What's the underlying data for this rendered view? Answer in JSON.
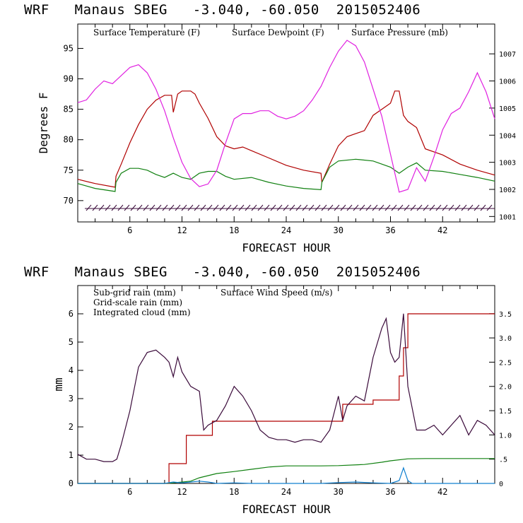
{
  "headers": {
    "top": "WRF   Manaus SBEG   -3.040, -60.050  2015052406",
    "bottom": "WRF   Manaus SBEG   -3.040, -60.050  2015052406"
  },
  "colors": {
    "temperature": "#b00000",
    "dewpoint": "#108010",
    "pressure": "#e020e0",
    "subgrid_rain": "#b00000",
    "gridscale_rain": "#108010",
    "cloud": "#1080d0",
    "wind": "#3a0a3a"
  },
  "chart_data": [
    {
      "type": "line",
      "title": "WRF Manaus SBEG -3.040, -60.050 2015052406",
      "xlabel": "FORECAST HOUR",
      "ylabel": "Degrees F",
      "x_ticks": [
        6,
        12,
        18,
        24,
        30,
        36,
        42
      ],
      "xlim": [
        0,
        48
      ],
      "y_ticks": [
        70,
        75,
        80,
        85,
        90,
        95
      ],
      "ylim": [
        66.5,
        99
      ],
      "y2_ticks": [
        1001,
        1002,
        1003,
        1004,
        1005,
        1006,
        1007
      ],
      "y2lim": [
        1000.8,
        1008.1
      ],
      "legend": [
        "Surface Temperature (F)",
        "Surface Dewpoint (F)",
        "Surface Pressure (mb)"
      ],
      "series": [
        {
          "name": "Surface Temperature (F)",
          "axis": "left",
          "x": [
            0,
            2,
            4.3,
            4.4,
            5,
            6,
            7,
            8,
            9,
            10,
            10.8,
            11,
            11.5,
            12,
            13,
            13.5,
            14,
            15,
            16,
            17,
            18,
            19,
            20,
            22,
            24,
            26,
            28,
            28.1,
            29,
            30,
            31,
            32,
            33,
            34,
            35,
            36,
            36.5,
            37,
            37.5,
            38,
            39,
            40,
            42,
            44,
            46,
            48
          ],
          "y": [
            73.5,
            72.8,
            72.2,
            74,
            76,
            79.5,
            82.5,
            85,
            86.5,
            87.3,
            87.3,
            84.5,
            87.5,
            88,
            88,
            87.5,
            86,
            83.5,
            80.5,
            79,
            78.5,
            78.8,
            78.2,
            77,
            75.8,
            75,
            74.5,
            73,
            76,
            79,
            80.5,
            81,
            81.5,
            84,
            85,
            86,
            88,
            88,
            84,
            83,
            82,
            78.5,
            77.5,
            76,
            75,
            74.2
          ]
        },
        {
          "name": "Surface Dewpoint (F)",
          "axis": "left",
          "x": [
            0,
            2,
            4.3,
            4.4,
            5,
            6,
            7,
            8,
            9,
            10,
            11,
            12,
            13,
            14,
            15,
            16,
            17,
            18,
            20,
            22,
            24,
            26,
            28,
            28.1,
            29,
            30,
            32,
            34,
            36,
            37,
            38,
            39,
            40,
            42,
            44,
            46,
            48
          ],
          "y": [
            72.8,
            72,
            71.5,
            73,
            74.5,
            75.3,
            75.3,
            75,
            74.3,
            73.8,
            74.5,
            73.8,
            73.5,
            74.5,
            74.8,
            74.8,
            74,
            73.5,
            73.8,
            73,
            72.4,
            72,
            71.8,
            73,
            75.5,
            76.5,
            76.8,
            76.5,
            75.5,
            74.5,
            75.5,
            76.2,
            75,
            74.8,
            74.3,
            73.8,
            73.2
          ]
        },
        {
          "name": "Surface Pressure (mb)",
          "axis": "right",
          "x": [
            0,
            1,
            2,
            3,
            4,
            5,
            6,
            7,
            8,
            9,
            10,
            11,
            12,
            13,
            14,
            15,
            16,
            17,
            18,
            19,
            20,
            21,
            22,
            23,
            24,
            25,
            26,
            27,
            28,
            29,
            30,
            31,
            32,
            33,
            34,
            35,
            36,
            37,
            38,
            39,
            40,
            41,
            42,
            43,
            44,
            45,
            46,
            47,
            48
          ],
          "y": [
            1005.2,
            1005.3,
            1005.7,
            1006,
            1005.9,
            1006.2,
            1006.5,
            1006.6,
            1006.3,
            1005.7,
            1004.9,
            1003.9,
            1003,
            1002.4,
            1002.1,
            1002.2,
            1002.7,
            1003.7,
            1004.6,
            1004.8,
            1004.8,
            1004.9,
            1004.9,
            1004.7,
            1004.6,
            1004.7,
            1004.9,
            1005.3,
            1005.8,
            1006.5,
            1007.1,
            1007.5,
            1007.3,
            1006.7,
            1005.7,
            1004.7,
            1003.3,
            1001.9,
            1002,
            1002.8,
            1002.3,
            1003.2,
            1004.2,
            1004.8,
            1005,
            1005.6,
            1006.3,
            1005.6,
            1004.6
          ]
        }
      ]
    },
    {
      "type": "line",
      "title": "WRF Manaus SBEG -3.040, -60.050 2015052406",
      "xlabel": "FORECAST HOUR",
      "ylabel": "mm",
      "x_ticks": [
        6,
        12,
        18,
        24,
        30,
        36,
        42
      ],
      "xlim": [
        0,
        48
      ],
      "y_ticks": [
        0,
        1,
        2,
        3,
        4,
        5,
        6
      ],
      "ylim": [
        0,
        7
      ],
      "y2_ticks": [
        "0",
        ".5",
        "1.0",
        "1.5",
        "2.0",
        "2.5",
        "3.0",
        "3.5"
      ],
      "y2lim": [
        0,
        4.08
      ],
      "legend": [
        "Sub-grid rain (mm)",
        "Surface Wind Speed (m/s)",
        "Grid-scale rain (mm)",
        "Integrated cloud (mm)"
      ],
      "series": [
        {
          "name": "Sub-grid rain (mm)",
          "axis": "left",
          "step": true,
          "x": [
            0,
            10,
            10.5,
            12,
            12.5,
            15,
            15.5,
            30,
            30.5,
            34,
            36.5,
            37,
            37.5,
            38,
            48
          ],
          "y": [
            0,
            0,
            0.7,
            0.7,
            1.7,
            1.7,
            2.2,
            2.2,
            2.8,
            2.95,
            2.95,
            3.8,
            4.8,
            6,
            6
          ]
        },
        {
          "name": "Grid-scale rain (mm)",
          "axis": "left",
          "x": [
            0,
            10,
            11,
            13,
            14,
            16,
            18,
            20,
            22,
            24,
            28,
            30,
            33,
            35,
            36,
            38,
            40,
            44,
            48
          ],
          "y": [
            0,
            0,
            0.02,
            0.08,
            0.2,
            0.35,
            0.42,
            0.5,
            0.58,
            0.62,
            0.62,
            0.63,
            0.67,
            0.75,
            0.8,
            0.87,
            0.88,
            0.88,
            0.88
          ]
        },
        {
          "name": "Integrated cloud (mm)",
          "axis": "left",
          "x": [
            0,
            10,
            11,
            12,
            13,
            14,
            15,
            16,
            18,
            20,
            28,
            30,
            32,
            34,
            36,
            37,
            37.5,
            38,
            38.5,
            39,
            48
          ],
          "y": [
            0,
            0,
            0.05,
            0.02,
            0.05,
            0.08,
            0.05,
            0,
            0.02,
            0,
            0,
            0.03,
            0.05,
            0.02,
            0,
            0.1,
            0.55,
            0.1,
            0,
            0,
            0
          ]
        },
        {
          "name": "Surface Wind Speed (m/s)",
          "axis": "right",
          "x": [
            0,
            1,
            2,
            3,
            4,
            4.5,
            5,
            6,
            7,
            8,
            9,
            10,
            10.5,
            11,
            11.5,
            12,
            13,
            14,
            14.5,
            15,
            16,
            17,
            18,
            19,
            20,
            21,
            22,
            23,
            24,
            25,
            26,
            27,
            28,
            29,
            30,
            30.5,
            31,
            32,
            33,
            34,
            35,
            35.5,
            36,
            36.5,
            37,
            37.5,
            38,
            39,
            40,
            41,
            42,
            43,
            44,
            45,
            46,
            47,
            48
          ],
          "y": [
            0.6,
            0.5,
            0.5,
            0.45,
            0.45,
            0.5,
            0.8,
            1.5,
            2.4,
            2.7,
            2.75,
            2.6,
            2.5,
            2.2,
            2.6,
            2.3,
            2.0,
            1.9,
            1.1,
            1.2,
            1.3,
            1.6,
            2.0,
            1.8,
            1.5,
            1.1,
            0.95,
            0.9,
            0.9,
            0.85,
            0.9,
            0.9,
            0.85,
            1.1,
            1.8,
            1.3,
            1.6,
            1.8,
            1.7,
            2.6,
            3.2,
            3.4,
            2.7,
            2.5,
            2.6,
            3.5,
            2.0,
            1.1,
            1.1,
            1.2,
            1.0,
            1.2,
            1.4,
            1.0,
            1.3,
            1.2,
            1.0
          ]
        }
      ]
    }
  ]
}
